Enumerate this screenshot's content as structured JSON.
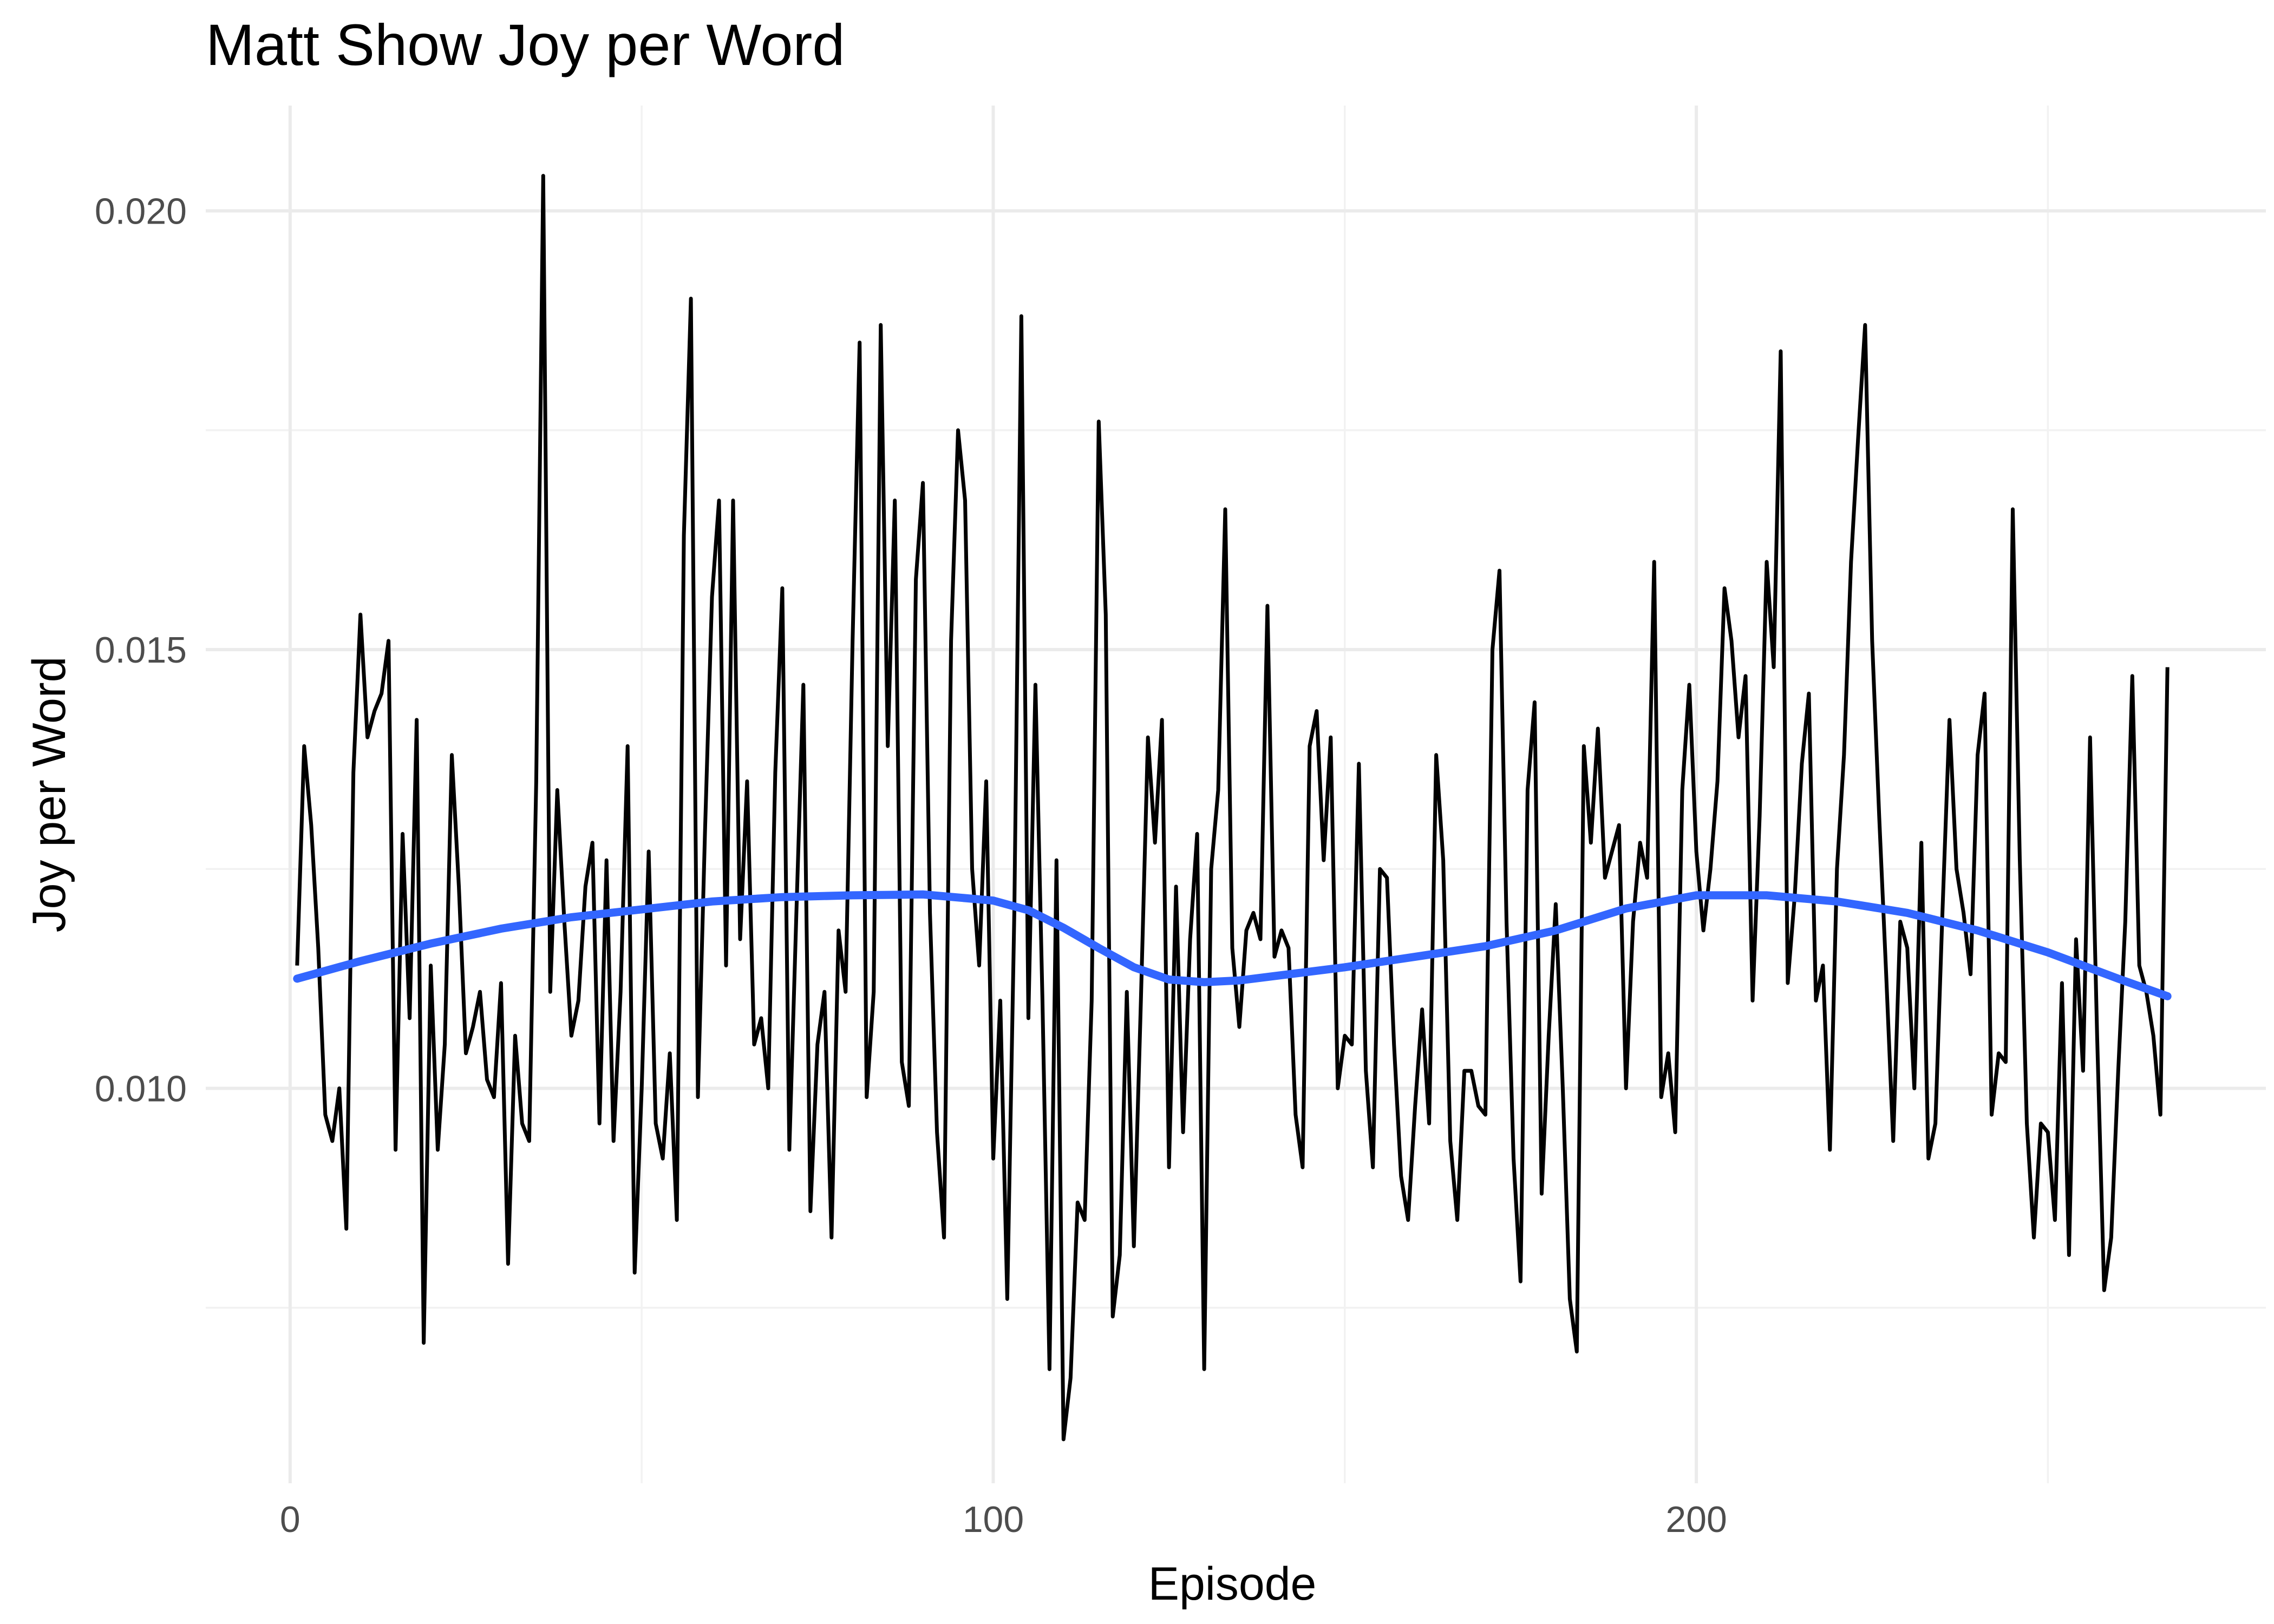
{
  "chart_data": {
    "type": "line",
    "title": "Matt Show Joy per Word",
    "xlabel": "Episode",
    "ylabel": "Joy per Word",
    "xlim": [
      -12,
      281
    ],
    "ylim": [
      0.0055,
      0.0212
    ],
    "x_ticks": [
      0,
      100,
      200
    ],
    "x_tick_labels": [
      "0",
      "100",
      "200"
    ],
    "y_ticks": [
      0.01,
      0.015,
      0.02
    ],
    "y_tick_labels": [
      "0.010",
      "0.015",
      "0.020"
    ],
    "x_minor_ticks": [
      50,
      150,
      250
    ],
    "y_minor_ticks": [
      0.0075,
      0.0125,
      0.0175
    ],
    "grid": true,
    "legend": "none",
    "series": [
      {
        "color": "#000000",
        "x": [
          1,
          2,
          3,
          4,
          5,
          6,
          7,
          8,
          9,
          10,
          11,
          12,
          13,
          14,
          15,
          16,
          17,
          18,
          19,
          20,
          21,
          22,
          23,
          24,
          25,
          26,
          27,
          28,
          29,
          30,
          31,
          32,
          33,
          34,
          35,
          36,
          37,
          38,
          39,
          40,
          41,
          42,
          43,
          44,
          45,
          46,
          47,
          48,
          49,
          50,
          51,
          52,
          53,
          54,
          55,
          56,
          57,
          58,
          59,
          60,
          61,
          62,
          63,
          64,
          65,
          66,
          67,
          68,
          69,
          70,
          71,
          72,
          73,
          74,
          75,
          76,
          77,
          78,
          79,
          80,
          81,
          82,
          83,
          84,
          85,
          86,
          87,
          88,
          89,
          90,
          91,
          92,
          93,
          94,
          95,
          96,
          97,
          98,
          99,
          100,
          101,
          102,
          103,
          104,
          105,
          106,
          107,
          108,
          109,
          110,
          111,
          112,
          113,
          114,
          115,
          116,
          117,
          118,
          119,
          120,
          121,
          122,
          123,
          124,
          125,
          126,
          127,
          128,
          129,
          130,
          131,
          132,
          133,
          134,
          135,
          136,
          137,
          138,
          139,
          140,
          141,
          142,
          143,
          144,
          145,
          146,
          147,
          148,
          149,
          150,
          151,
          152,
          153,
          154,
          155,
          156,
          157,
          158,
          159,
          160,
          161,
          162,
          163,
          164,
          165,
          166,
          167,
          168,
          169,
          170,
          171,
          172,
          173,
          174,
          175,
          176,
          177,
          178,
          179,
          180,
          181,
          182,
          183,
          184,
          185,
          186,
          187,
          188,
          189,
          190,
          191,
          192,
          193,
          194,
          195,
          196,
          197,
          198,
          199,
          200,
          201,
          202,
          203,
          204,
          205,
          206,
          207,
          208,
          209,
          210,
          211,
          212,
          213,
          214,
          215,
          216,
          217,
          218,
          219,
          220,
          221,
          222,
          223,
          224,
          225,
          226,
          227,
          228,
          229,
          230,
          231,
          232,
          233,
          234,
          235,
          236,
          237,
          238,
          239,
          240,
          241,
          242,
          243,
          244,
          245,
          246,
          247,
          248,
          249,
          250,
          251,
          252,
          253,
          254,
          255,
          256,
          257,
          258,
          259,
          260,
          261,
          262,
          263,
          264,
          265,
          266,
          267
        ],
        "y": [
          0.0114,
          0.0139,
          0.013,
          0.0116,
          0.0097,
          0.0094,
          0.01,
          0.0084,
          0.0136,
          0.0154,
          0.014,
          0.0143,
          0.0145,
          0.0151,
          0.0093,
          0.0129,
          0.0108,
          0.0142,
          0.0071,
          0.0114,
          0.0093,
          0.0105,
          0.0138,
          0.0123,
          0.0104,
          0.0107,
          0.0111,
          0.0101,
          0.0099,
          0.0112,
          0.008,
          0.0106,
          0.0096,
          0.0094,
          0.0135,
          0.0204,
          0.0111,
          0.0134,
          0.0119,
          0.0106,
          0.011,
          0.0123,
          0.0128,
          0.0096,
          0.0126,
          0.0094,
          0.0111,
          0.0139,
          0.0079,
          0.01,
          0.0127,
          0.0096,
          0.0092,
          0.0104,
          0.0085,
          0.0163,
          0.019,
          0.0099,
          0.0129,
          0.0156,
          0.0167,
          0.0114,
          0.0167,
          0.0117,
          0.0135,
          0.0105,
          0.0108,
          0.01,
          0.0136,
          0.0157,
          0.0093,
          0.012,
          0.0146,
          0.0086,
          0.0105,
          0.0111,
          0.0083,
          0.0118,
          0.0111,
          0.0151,
          0.0185,
          0.0099,
          0.0111,
          0.0187,
          0.0139,
          0.0167,
          0.0103,
          0.0098,
          0.0158,
          0.0169,
          0.012,
          0.0095,
          0.0083,
          0.0151,
          0.0175,
          0.0167,
          0.0125,
          0.0114,
          0.0135,
          0.0092,
          0.011,
          0.0076,
          0.012,
          0.0188,
          0.0108,
          0.0146,
          0.011,
          0.0068,
          0.0126,
          0.006,
          0.0067,
          0.0087,
          0.0085,
          0.011,
          0.0176,
          0.0154,
          0.0074,
          0.0081,
          0.0111,
          0.0082,
          0.011,
          0.014,
          0.0128,
          0.0142,
          0.0091,
          0.0123,
          0.0095,
          0.0117,
          0.0129,
          0.0068,
          0.0125,
          0.0134,
          0.0166,
          0.0116,
          0.0107,
          0.0118,
          0.012,
          0.0117,
          0.0155,
          0.0115,
          0.0118,
          0.0116,
          0.0097,
          0.0091,
          0.0139,
          0.0143,
          0.0126,
          0.014,
          0.01,
          0.0106,
          0.0105,
          0.0137,
          0.0102,
          0.0091,
          0.0125,
          0.0124,
          0.0105,
          0.009,
          0.0085,
          0.0098,
          0.0109,
          0.0096,
          0.0138,
          0.0126,
          0.0094,
          0.0085,
          0.0102,
          0.0102,
          0.0098,
          0.0097,
          0.015,
          0.0159,
          0.0119,
          0.0092,
          0.0078,
          0.0134,
          0.0144,
          0.0088,
          0.0106,
          0.0121,
          0.01,
          0.0076,
          0.007,
          0.0139,
          0.0128,
          0.0141,
          0.0124,
          0.0127,
          0.013,
          0.01,
          0.0119,
          0.0128,
          0.0124,
          0.016,
          0.0099,
          0.0104,
          0.0095,
          0.0134,
          0.0146,
          0.0127,
          0.0118,
          0.0125,
          0.0135,
          0.0157,
          0.0151,
          0.014,
          0.0147,
          0.011,
          0.0131,
          0.016,
          0.0148,
          0.0184,
          0.0112,
          0.0122,
          0.0137,
          0.0145,
          0.011,
          0.0114,
          0.0093,
          0.0125,
          0.0138,
          0.016,
          0.0174,
          0.0187,
          0.0151,
          0.0131,
          0.0113,
          0.0094,
          0.0119,
          0.0116,
          0.01,
          0.0128,
          0.0092,
          0.0096,
          0.012,
          0.0142,
          0.0125,
          0.012,
          0.0113,
          0.0138,
          0.0145,
          0.0097,
          0.0104,
          0.0103,
          0.0166,
          0.0126,
          0.0096,
          0.0083,
          0.0096,
          0.0095,
          0.0085,
          0.0112,
          0.0081,
          0.0117,
          0.0102,
          0.014,
          0.0106,
          0.0077,
          0.0083,
          0.0102,
          0.0119,
          0.0147,
          0.0114,
          0.0111,
          0.0106,
          0.0097,
          0.0148
        ]
      },
      {
        "color": "#3366ff",
        "x": [
          1,
          10,
          20,
          30,
          40,
          50,
          60,
          70,
          80,
          90,
          100,
          105,
          110,
          115,
          120,
          125,
          130,
          135,
          140,
          145,
          150,
          160,
          170,
          180,
          190,
          200,
          210,
          220,
          230,
          240,
          250,
          260,
          267
        ],
        "y": [
          0.01125,
          0.01145,
          0.01165,
          0.01182,
          0.01195,
          0.01204,
          0.01213,
          0.01218,
          0.0122,
          0.01221,
          0.01214,
          0.01203,
          0.01183,
          0.0116,
          0.01138,
          0.01124,
          0.01121,
          0.01123,
          0.01128,
          0.01133,
          0.01138,
          0.0115,
          0.01162,
          0.0118,
          0.01205,
          0.0122,
          0.0122,
          0.01213,
          0.012,
          0.0118,
          0.01155,
          0.01125,
          0.01105
        ]
      }
    ]
  }
}
